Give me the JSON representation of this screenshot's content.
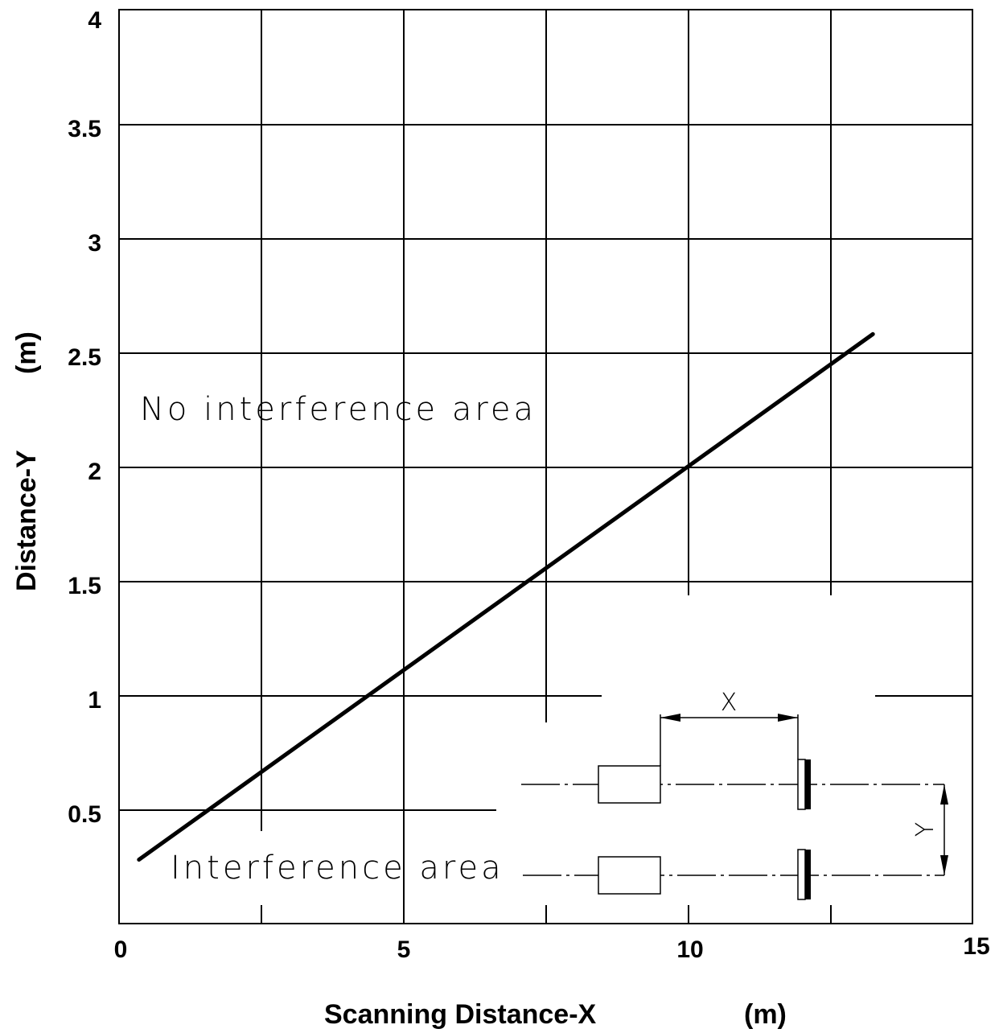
{
  "chart_data": {
    "type": "line",
    "title": "",
    "xlabel": "Scanning Distance-X",
    "xunit": "(m)",
    "ylabel": "Distance-Y",
    "yunit": "(m)",
    "xlim": [
      0,
      15
    ],
    "ylim": [
      0,
      4
    ],
    "x_ticks": [
      0,
      5,
      10,
      15
    ],
    "y_ticks": [
      0.5,
      1,
      1.5,
      2,
      2.5,
      3,
      3.5,
      4
    ],
    "x_tick_labels": [
      "0",
      "5",
      "10",
      "15"
    ],
    "y_tick_labels": [
      "0.5",
      "1",
      "1.5",
      "2",
      "2.5",
      "3",
      "3.5",
      "4"
    ],
    "grid": true,
    "series": [
      {
        "x": [
          0.35,
          13.25
        ],
        "y": [
          0.28,
          2.58
        ]
      }
    ],
    "annotations": {
      "upper_region": "No interference area",
      "lower_region": "Interference area",
      "dimension_x": "X",
      "dimension_y": "Y"
    }
  }
}
